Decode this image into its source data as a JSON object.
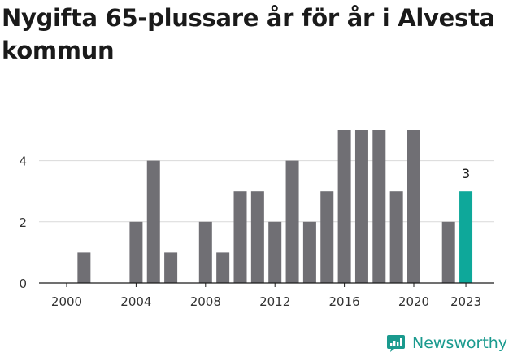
{
  "title": "Nygifta 65-plussare år för år i Alvesta kommun",
  "brand": {
    "name": "Newsworthy",
    "icon": "newsworthy-logo-icon",
    "color": "#1a9a8e"
  },
  "chart_data": {
    "type": "bar",
    "title": "Nygifta 65-plussare år för år i Alvesta kommun",
    "xlabel": "",
    "ylabel": "",
    "categories": [
      "2000",
      "2001",
      "2002",
      "2003",
      "2004",
      "2005",
      "2006",
      "2007",
      "2008",
      "2009",
      "2010",
      "2011",
      "2012",
      "2013",
      "2014",
      "2015",
      "2016",
      "2017",
      "2018",
      "2019",
      "2020",
      "2021",
      "2022",
      "2023"
    ],
    "values": [
      0,
      1,
      0,
      0,
      2,
      4,
      1,
      0,
      2,
      1,
      3,
      3,
      2,
      4,
      2,
      3,
      5,
      5,
      5,
      3,
      5,
      0,
      2,
      3
    ],
    "x_tick_labels": [
      "2000",
      "2004",
      "2008",
      "2012",
      "2016",
      "2020",
      "2023"
    ],
    "y_ticks": [
      0,
      2,
      4
    ],
    "ylim": [
      0,
      5
    ],
    "grid": true,
    "highlight": {
      "category": "2023",
      "label": "3"
    },
    "colors": {
      "bar": "#706f74",
      "highlight": "#0ea89a",
      "grid": "#d9d9d9",
      "axis": "#1a1a1a"
    }
  }
}
